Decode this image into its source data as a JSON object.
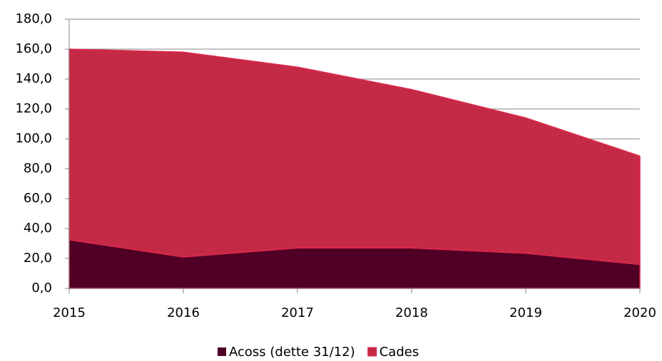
{
  "chart_data": {
    "type": "area",
    "categories": [
      "2015",
      "2016",
      "2017",
      "2018",
      "2019",
      "2020"
    ],
    "series": [
      {
        "name": "Acoss (dette 31/12)",
        "color": "#500024",
        "values": [
          32.5,
          21,
          27,
          27,
          23.5,
          16
        ]
      },
      {
        "name": "Cades",
        "color": "#c42a46",
        "values": [
          127.5,
          137,
          121,
          106,
          90.5,
          72.5
        ]
      }
    ],
    "stacked": true,
    "ylim": [
      0,
      180
    ],
    "yticks": [
      {
        "value": 0,
        "label": "0,0"
      },
      {
        "value": 20,
        "label": "20,0"
      },
      {
        "value": 40,
        "label": "40,0"
      },
      {
        "value": 60,
        "label": "60,0"
      },
      {
        "value": 80,
        "label": "80,0"
      },
      {
        "value": 100,
        "label": "100,0"
      },
      {
        "value": 120,
        "label": "120,0"
      },
      {
        "value": 140,
        "label": "140,0"
      },
      {
        "value": 160,
        "label": "160,0"
      },
      {
        "value": 180,
        "label": "180,0"
      }
    ],
    "grid": true,
    "legend": "bottom"
  }
}
